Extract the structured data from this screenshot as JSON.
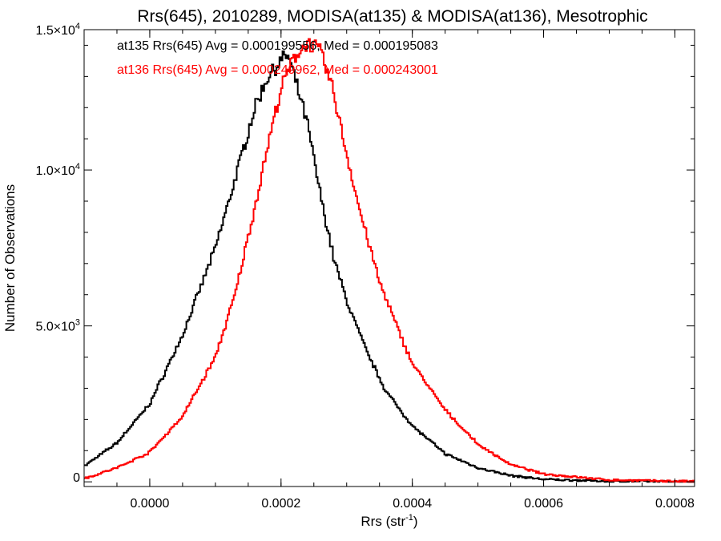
{
  "chart_data": {
    "type": "line",
    "title": "Rrs(645), 2010289, MODISA(at135) & MODISA(at136), Mesotrophic",
    "xlabel": {
      "base": "Rrs (str",
      "sup": "-1",
      "end": ")"
    },
    "ylabel": "Number of Observations",
    "xlim": [
      -0.0001,
      0.00083
    ],
    "ylim": [
      -150,
      14500
    ],
    "grid": false,
    "x_ticks": [
      {
        "value": 0.0,
        "label": "0.0000"
      },
      {
        "value": 0.0002,
        "label": "0.0002"
      },
      {
        "value": 0.0004,
        "label": "0.0004"
      },
      {
        "value": 0.0006,
        "label": "0.0006"
      },
      {
        "value": 0.0008,
        "label": "0.0008"
      }
    ],
    "y_ticks": [
      {
        "value": 0,
        "mant": "0",
        "exp": ""
      },
      {
        "value": 5000,
        "mant": "5.0×10",
        "exp": "3"
      },
      {
        "value": 10000,
        "mant": "1.0×10",
        "exp": "4"
      },
      {
        "value": 14500,
        "mant": "1.5×10",
        "exp": "4"
      }
    ],
    "annotations": [
      {
        "text": "at135 Rrs(645) Avg = 0.000199556, Med = 0.000195083",
        "color": "#000000"
      },
      {
        "text": "at136 Rrs(645) Avg = 0.000249962, Med = 0.000243001",
        "color": "#ff0000"
      }
    ],
    "series": [
      {
        "color": "#000000",
        "x": [
          -0.0001,
          -5e-05,
          0.0,
          5e-05,
          0.0001,
          0.00013,
          0.00016,
          0.00018,
          0.0002,
          0.00021,
          0.00022,
          0.00024,
          0.00026,
          0.00028,
          0.0003,
          0.00033,
          0.00036,
          0.0004,
          0.00045,
          0.0005,
          0.00055,
          0.0006,
          0.0007,
          0.00083
        ],
        "values": [
          500,
          1250,
          2500,
          4700,
          7500,
          9700,
          12000,
          13000,
          13500,
          13700,
          13000,
          11500,
          9200,
          7200,
          5800,
          4200,
          2900,
          1800,
          900,
          450,
          200,
          80,
          20,
          5
        ]
      },
      {
        "color": "#ff0000",
        "x": [
          -0.0001,
          -5e-05,
          0.0,
          5e-05,
          0.0001,
          0.00013,
          0.00016,
          0.00018,
          0.0002,
          0.00022,
          0.00024,
          0.00026,
          0.00028,
          0.0003,
          0.00032,
          0.00035,
          0.00038,
          0.0004,
          0.00045,
          0.0005,
          0.00055,
          0.0006,
          0.0007,
          0.00083
        ],
        "values": [
          100,
          450,
          950,
          2100,
          4000,
          6000,
          8800,
          10800,
          12600,
          13600,
          14100,
          13800,
          12500,
          10500,
          8700,
          6400,
          4800,
          3800,
          2300,
          1200,
          550,
          250,
          60,
          10
        ]
      }
    ]
  }
}
